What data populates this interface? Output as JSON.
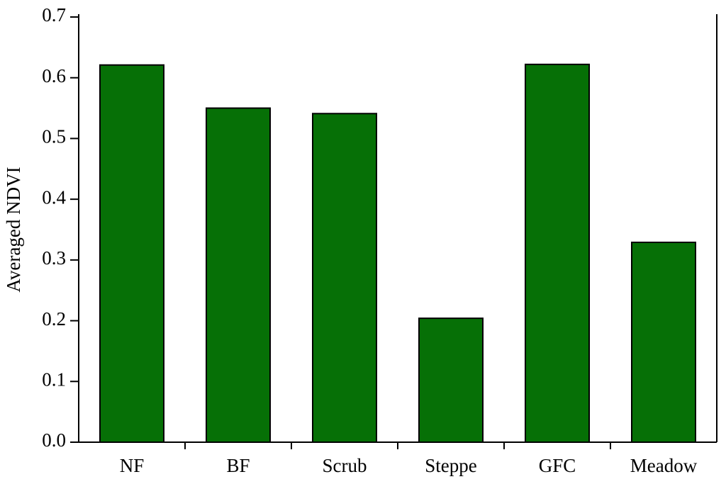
{
  "chart_data": {
    "type": "bar",
    "y_label": "Averaged NDVI",
    "categories": [
      "NF",
      "BF",
      "Scrub",
      "Steppe",
      "GFC",
      "Meadow"
    ],
    "values": [
      0.621,
      0.55,
      0.541,
      0.204,
      0.622,
      0.329
    ],
    "color": "#067006",
    "ylim": [
      0,
      0.7
    ],
    "yticks": [
      {
        "value": 0,
        "label": "0.0"
      },
      0.1,
      0.2,
      0.3,
      0.4,
      0.5,
      0.6,
      0.7
    ],
    "grid": false
  }
}
